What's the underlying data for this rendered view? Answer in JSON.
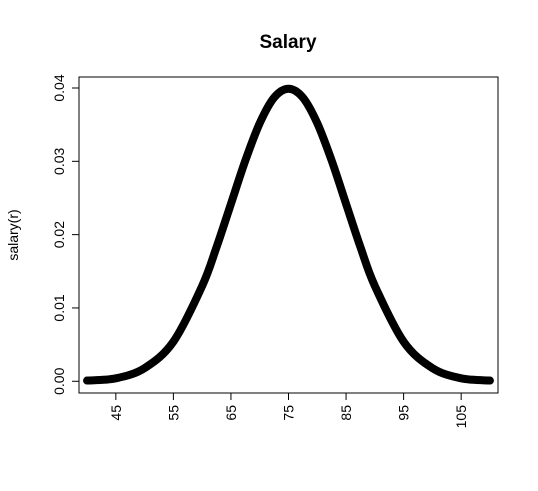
{
  "chart_data": {
    "type": "line",
    "title": "Salary",
    "xlabel": "",
    "ylabel": "salary(r)",
    "xlim": [
      38.6,
      111.4
    ],
    "ylim": [
      -0.0016,
      0.0415
    ],
    "x_ticks": [
      45,
      55,
      65,
      75,
      85,
      95,
      105
    ],
    "x_tick_labels": [
      "45",
      "55",
      "65",
      "75",
      "85",
      "95",
      "105"
    ],
    "y_ticks": [
      0.0,
      0.01,
      0.02,
      0.03,
      0.04
    ],
    "y_tick_labels": [
      "0.00",
      "0.01",
      "0.02",
      "0.03",
      "0.04"
    ],
    "grid": false,
    "legend": "none",
    "line_color": "#000000",
    "series": [
      {
        "x": [
          40,
          45,
          50,
          55,
          60,
          62.5,
          65,
          67.5,
          70,
          72.5,
          75,
          77.5,
          80,
          82.5,
          85,
          87.5,
          90,
          95,
          100,
          105,
          110
        ],
        "values": [
          0.0001,
          0.0004,
          0.0018,
          0.0054,
          0.013,
          0.0183,
          0.0242,
          0.0301,
          0.0352,
          0.0387,
          0.0399,
          0.0387,
          0.0352,
          0.0301,
          0.0242,
          0.0183,
          0.013,
          0.0054,
          0.0018,
          0.0004,
          0.0001
        ]
      }
    ]
  }
}
